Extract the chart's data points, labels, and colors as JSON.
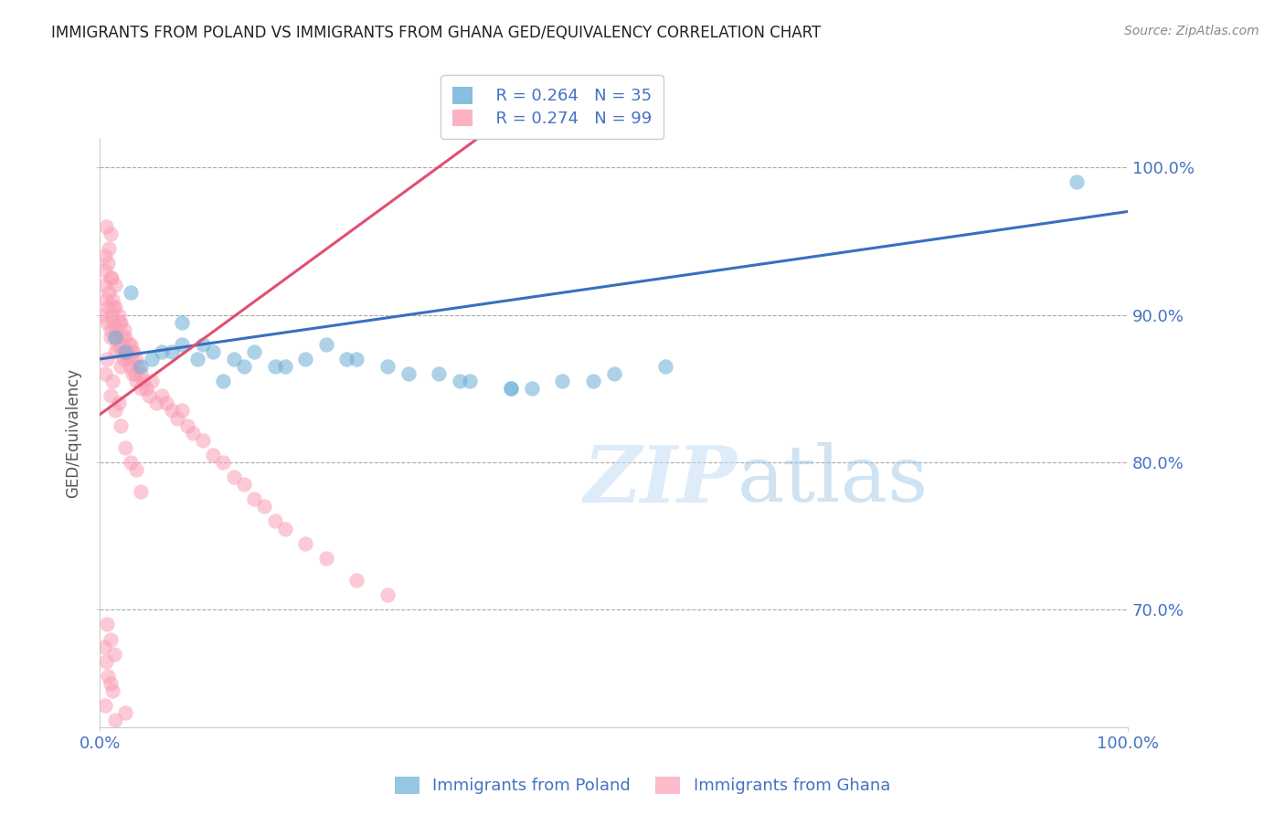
{
  "title": "IMMIGRANTS FROM POLAND VS IMMIGRANTS FROM GHANA GED/EQUIVALENCY CORRELATION CHART",
  "source": "Source: ZipAtlas.com",
  "ylabel": "GED/Equivalency",
  "xlim": [
    0.0,
    100.0
  ],
  "ylim": [
    62.0,
    102.0
  ],
  "yticks": [
    70.0,
    80.0,
    90.0,
    100.0
  ],
  "poland_color": "#6baed6",
  "ghana_color": "#fa9fb5",
  "poland_R": 0.264,
  "poland_N": 35,
  "ghana_R": 0.274,
  "ghana_N": 99,
  "axis_color": "#4472c4",
  "poland_line_start_y": 87.0,
  "poland_line_end_y": 97.0,
  "ghana_line_start_x": 0.5,
  "ghana_line_start_y": 83.5,
  "ghana_line_end_x": 28.0,
  "ghana_line_end_y": 97.5,
  "poland_scatter_x": [
    1.5,
    2.5,
    4.0,
    5.0,
    6.0,
    8.0,
    9.5,
    11.0,
    13.0,
    15.0,
    17.0,
    20.0,
    22.0,
    25.0,
    28.0,
    30.0,
    33.0,
    36.0,
    40.0,
    45.0,
    50.0,
    55.0,
    10.0,
    12.0,
    7.0,
    95.0,
    40.0,
    35.0,
    14.0,
    18.0,
    24.0,
    42.0,
    48.0,
    3.0,
    8.0
  ],
  "poland_scatter_y": [
    88.5,
    87.5,
    86.5,
    87.0,
    87.5,
    88.0,
    87.0,
    87.5,
    87.0,
    87.5,
    86.5,
    87.0,
    88.0,
    87.0,
    86.5,
    86.0,
    86.0,
    85.5,
    85.0,
    85.5,
    86.0,
    86.5,
    88.0,
    85.5,
    87.5,
    99.0,
    85.0,
    85.5,
    86.5,
    86.5,
    87.0,
    85.0,
    85.5,
    91.5,
    89.5
  ],
  "ghana_scatter_x": [
    0.3,
    0.4,
    0.5,
    0.6,
    0.7,
    0.8,
    0.9,
    1.0,
    1.0,
    1.1,
    1.2,
    1.3,
    1.4,
    1.5,
    1.5,
    1.6,
    1.7,
    1.8,
    1.9,
    2.0,
    2.0,
    2.1,
    2.2,
    2.3,
    2.4,
    2.5,
    2.5,
    2.6,
    2.7,
    2.8,
    2.9,
    3.0,
    3.0,
    3.1,
    3.2,
    3.3,
    3.4,
    3.5,
    3.5,
    3.7,
    4.0,
    4.0,
    4.2,
    4.5,
    4.8,
    5.0,
    5.5,
    6.0,
    6.5,
    7.0,
    7.5,
    8.0,
    8.5,
    9.0,
    10.0,
    11.0,
    12.0,
    13.0,
    14.0,
    15.0,
    16.0,
    17.0,
    18.0,
    20.0,
    22.0,
    25.0,
    28.0,
    0.5,
    0.7,
    1.0,
    1.2,
    1.5,
    1.8,
    2.0,
    2.5,
    3.0,
    3.5,
    4.0,
    1.0,
    1.5,
    2.0,
    0.5,
    0.8,
    1.0,
    0.6,
    0.9,
    1.1,
    1.3,
    0.4,
    0.6,
    0.8,
    1.0,
    1.2,
    0.5,
    1.5,
    2.5,
    0.7,
    1.0,
    1.4
  ],
  "ghana_scatter_y": [
    90.0,
    92.0,
    93.0,
    91.0,
    89.5,
    90.5,
    91.5,
    89.0,
    92.5,
    90.0,
    91.0,
    89.5,
    88.5,
    90.5,
    92.0,
    89.0,
    88.0,
    90.0,
    89.5,
    88.0,
    89.5,
    87.5,
    88.5,
    87.0,
    89.0,
    87.5,
    88.5,
    87.0,
    87.5,
    88.0,
    86.5,
    88.0,
    87.0,
    87.5,
    86.0,
    87.5,
    86.0,
    87.0,
    85.5,
    86.5,
    86.0,
    85.0,
    85.5,
    85.0,
    84.5,
    85.5,
    84.0,
    84.5,
    84.0,
    83.5,
    83.0,
    83.5,
    82.5,
    82.0,
    81.5,
    80.5,
    80.0,
    79.0,
    78.5,
    77.5,
    77.0,
    76.0,
    75.5,
    74.5,
    73.5,
    72.0,
    71.0,
    86.0,
    87.0,
    84.5,
    85.5,
    83.5,
    84.0,
    82.5,
    81.0,
    80.0,
    79.5,
    78.0,
    88.5,
    87.5,
    86.5,
    94.0,
    93.5,
    95.5,
    96.0,
    94.5,
    92.5,
    90.5,
    67.5,
    66.5,
    65.5,
    65.0,
    64.5,
    63.5,
    62.5,
    63.0,
    69.0,
    68.0,
    67.0
  ]
}
